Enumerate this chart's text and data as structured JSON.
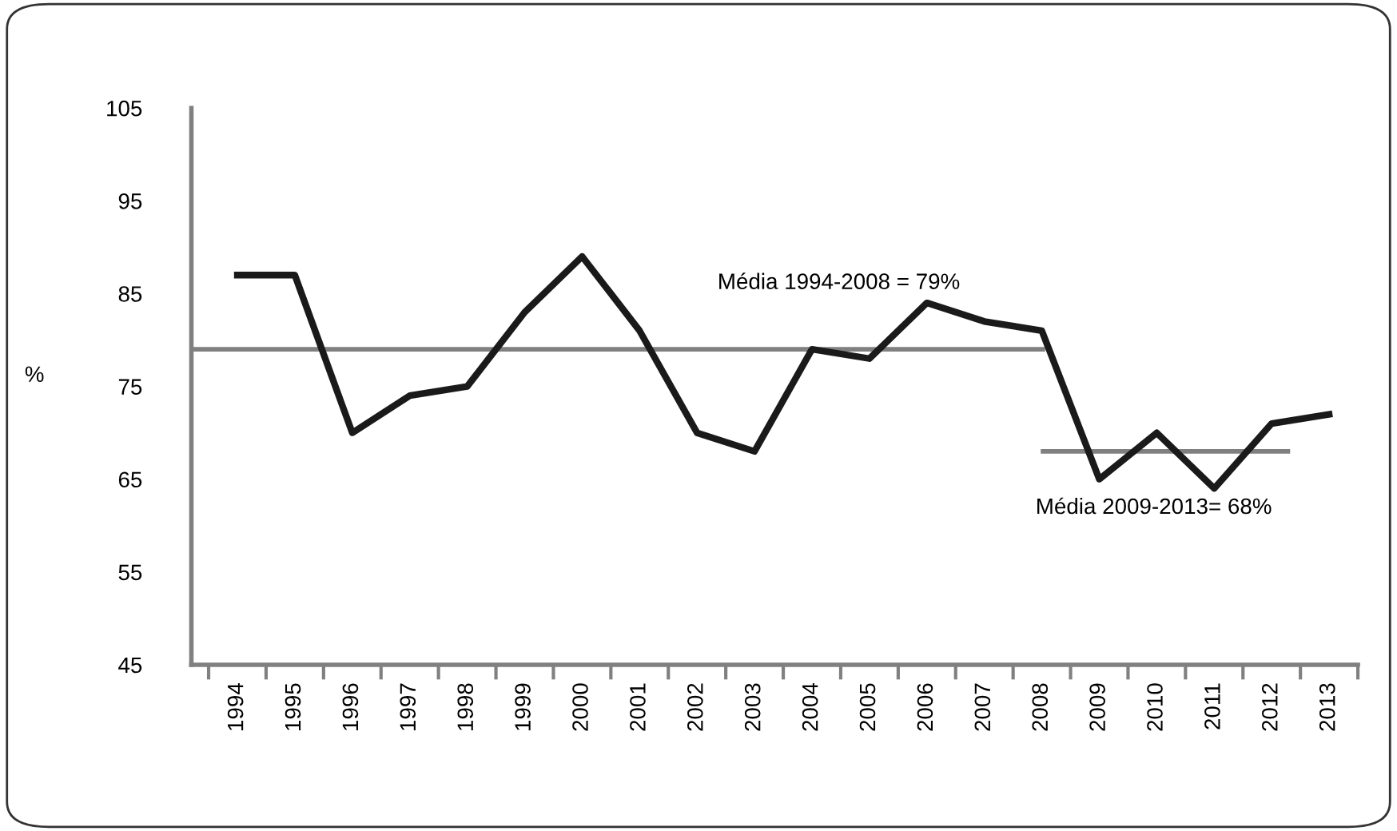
{
  "chart_data": {
    "type": "line",
    "ylabel": "%",
    "categories": [
      "1994",
      "1995",
      "1996",
      "1997",
      "1998",
      "1999",
      "2000",
      "2001",
      "2002",
      "2003",
      "2004",
      "2005",
      "2006",
      "2007",
      "2008",
      "2009",
      "2010",
      "2011",
      "2012",
      "2013"
    ],
    "series": [
      {
        "color": "#1a1a1a",
        "values": [
          87,
          87,
          70,
          74,
          75,
          83,
          89,
          81,
          70,
          68,
          79,
          78,
          84,
          82,
          81,
          65,
          70,
          64,
          71,
          72
        ]
      }
    ],
    "ref_lines": [
      {
        "axis": "y",
        "value": 79,
        "label": "Média 1994-2008 = 79%",
        "color": "#808080"
      },
      {
        "axis": "y",
        "value": 68,
        "label": "Média 2009-2013= 68%",
        "color": "#808080"
      }
    ],
    "ylim": [
      45,
      105
    ],
    "yticks": [
      45,
      55,
      65,
      75,
      85,
      95,
      105
    ],
    "grid": false,
    "legend": false,
    "marker": "none",
    "line_style": "solid"
  }
}
